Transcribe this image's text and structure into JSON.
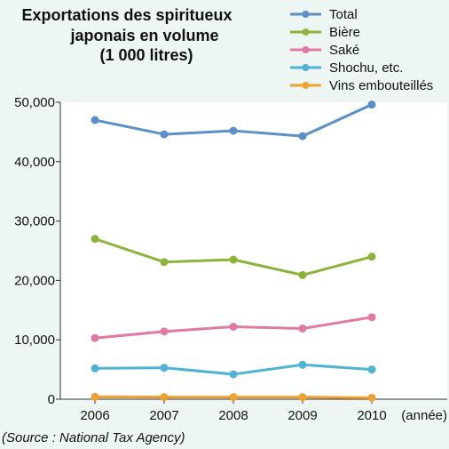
{
  "chart_data": {
    "type": "line",
    "title_lines": [
      "Exportations des spiritueux",
      "japonais en volume",
      "(1 000 litres)"
    ],
    "categories": [
      "2006",
      "2007",
      "2008",
      "2009",
      "2010"
    ],
    "x_unit": "(année)",
    "ylim": [
      0,
      50000
    ],
    "y_ticks": [
      0,
      10000,
      20000,
      30000,
      40000,
      50000
    ],
    "y_tick_labels": [
      "0",
      "10,000",
      "20,000",
      "30,000",
      "40,000",
      "50,000"
    ],
    "grid": false,
    "legend_position": "top-right",
    "series": [
      {
        "name": "Total",
        "color": "#5b8fc9",
        "values": [
          47000,
          44600,
          45200,
          44300,
          49600
        ]
      },
      {
        "name": "Bière",
        "color": "#8db33a",
        "values": [
          27000,
          23100,
          23500,
          20900,
          24000
        ]
      },
      {
        "name": "Saké",
        "color": "#e07aa2",
        "values": [
          10300,
          11400,
          12200,
          11900,
          13800
        ]
      },
      {
        "name": "Shochu, etc.",
        "color": "#4fb3d4",
        "values": [
          5200,
          5300,
          4200,
          5800,
          5000
        ]
      },
      {
        "name": "Vins embouteillés",
        "color": "#f0a030",
        "values": [
          400,
          350,
          350,
          350,
          250
        ]
      }
    ]
  },
  "source": "(Source : National Tax Agency)"
}
